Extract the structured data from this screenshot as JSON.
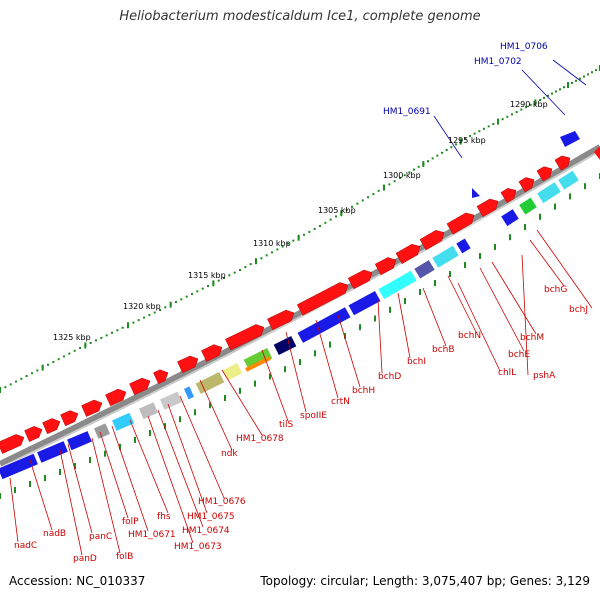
{
  "title": "Heliobacterium modesticaldum Ice1, complete genome",
  "footer": {
    "accession": "Accession: NC_010337",
    "stats": "Topology: circular; Length: 3,075,407 bp; Genes: 3,129"
  },
  "colors": {
    "backbone": "#8a8a8a",
    "forward_feature": "#ff1111",
    "reverse_feature": "#1a1ae6",
    "tick": "#1f8a1f",
    "feature_label": "#cc0000",
    "blue_label": "#0000aa",
    "tick_label": "#000000"
  },
  "scale_labels": [
    "1290 kbp",
    "1295 kbp",
    "1300 kbp",
    "1305 kbp",
    "1310 kbp",
    "1315 kbp",
    "1320 kbp",
    "1325 kbp"
  ],
  "blue_labels": [
    "HM1_0706",
    "HM1_0702",
    "HM1_0691"
  ],
  "gene_labels": [
    "pshA",
    "bchG",
    "bchJ",
    "bchM",
    "bchE",
    "bchN",
    "chlL",
    "bchB",
    "bchI",
    "bchD",
    "bchH",
    "crtN",
    "spoIIE",
    "tilS",
    "HM1_0678",
    "ndk",
    "HM1_0676",
    "HM1_0675",
    "HM1_0674",
    "HM1_0673",
    "fhs",
    "HM1_0671",
    "folP",
    "folB",
    "panC",
    "panD",
    "nadB",
    "nadC"
  ]
}
